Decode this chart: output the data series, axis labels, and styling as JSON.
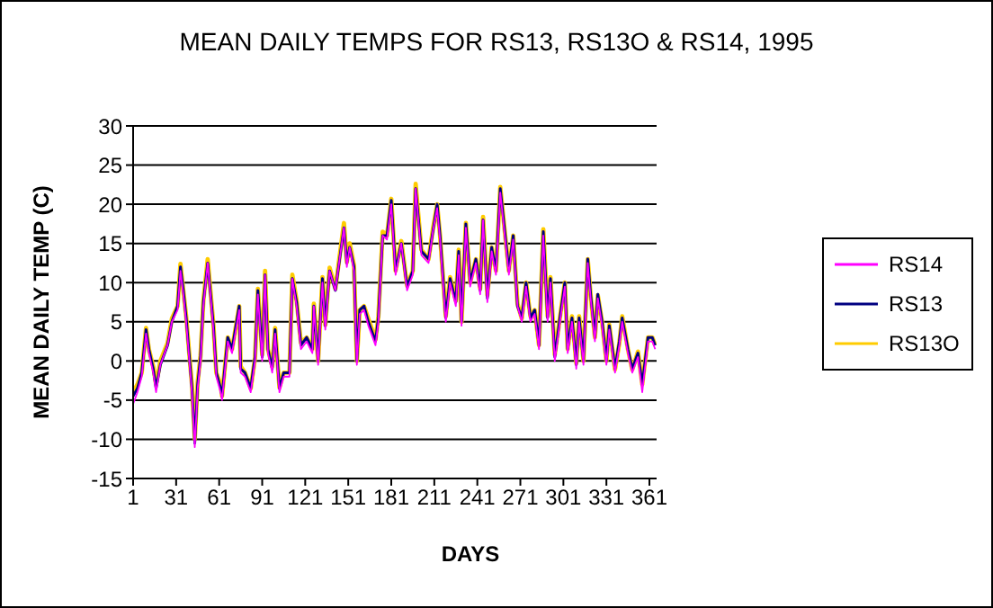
{
  "chart_data": {
    "type": "line",
    "title": "MEAN DAILY TEMPS FOR RS13, RS13O & RS14, 1995",
    "xlabel": "DAYS",
    "ylabel": "MEAN DAILY TEMP (C)",
    "x": [
      1,
      4,
      7,
      10,
      12,
      15,
      17,
      20,
      25,
      28,
      32,
      34,
      36,
      38,
      40,
      42,
      44,
      46,
      48,
      50,
      53,
      57,
      59,
      62,
      63,
      67,
      70,
      75,
      76,
      79,
      83,
      86,
      88,
      91,
      93,
      95,
      98,
      100,
      103,
      106,
      110,
      112,
      115,
      118,
      122,
      126,
      127,
      130,
      133,
      135,
      138,
      142,
      145,
      148,
      150,
      152,
      155,
      157,
      159,
      162,
      165,
      170,
      172,
      175,
      178,
      181,
      184,
      188,
      192,
      196,
      198,
      202,
      207,
      210,
      213,
      215,
      219,
      222,
      226,
      228,
      230,
      233,
      236,
      240,
      243,
      245,
      248,
      251,
      254,
      257,
      261,
      263,
      266,
      269,
      272,
      275,
      278,
      281,
      284,
      287,
      290,
      292,
      295,
      299,
      302,
      304,
      307,
      310,
      312,
      315,
      318,
      320,
      323,
      325,
      328,
      331,
      333,
      337,
      340,
      342,
      346,
      349,
      353,
      356,
      360,
      363,
      365
    ],
    "series": [
      {
        "name": "RS14",
        "color": "#ff00ff",
        "values": [
          -5.5,
          -4,
          -2,
          3.5,
          1,
          -1.5,
          -4,
          -0.5,
          2,
          5,
          6.5,
          11.5,
          8.5,
          5,
          0.5,
          -4,
          -11,
          -3.5,
          0,
          7,
          12.5,
          4,
          -2,
          -4,
          -5,
          2.5,
          1,
          6.5,
          -1.5,
          -2,
          -4,
          0,
          8.5,
          0,
          11,
          1,
          -1.5,
          3.5,
          -4,
          -2,
          -2,
          10.5,
          7,
          1.5,
          2.5,
          1,
          7,
          -0.5,
          10,
          4,
          11.5,
          9,
          13,
          17,
          12,
          14.5,
          11.5,
          -0.5,
          6,
          6.5,
          4.5,
          2,
          5,
          16,
          15.5,
          20,
          11,
          15,
          9,
          11,
          22,
          13.5,
          12.5,
          16.5,
          19.5,
          15.5,
          5,
          10,
          7,
          13.5,
          4.5,
          17,
          9.5,
          12.5,
          8.5,
          18,
          7.5,
          14,
          11,
          21.5,
          14.5,
          11,
          15.5,
          7,
          5,
          9.5,
          5,
          6,
          1.5,
          16,
          5,
          10,
          0,
          5.5,
          9.5,
          1,
          5,
          -1,
          5,
          -0.5,
          12.5,
          8,
          2.5,
          8,
          4.5,
          -0.5,
          4,
          -1.5,
          2,
          5,
          1,
          -1.5,
          0.5,
          -4,
          2.5,
          2.5,
          1.5
        ]
      },
      {
        "name": "RS13",
        "color": "#000080",
        "values": [
          -4.5,
          -3.5,
          -1.5,
          4,
          1.5,
          -1,
          -3.5,
          -0.5,
          2,
          5,
          7,
          12,
          9,
          5.5,
          1,
          -3.5,
          -10.5,
          -3,
          0.5,
          7.5,
          12.5,
          4.5,
          -1.5,
          -3.5,
          -4.5,
          3,
          1.5,
          7,
          -1,
          -1.5,
          -3.5,
          0.5,
          9,
          0.5,
          11,
          1.5,
          -1,
          4,
          -3.5,
          -1.5,
          -1.5,
          10.5,
          7.5,
          2,
          3,
          1.5,
          7,
          0,
          10.5,
          4.5,
          11.5,
          9,
          13,
          17,
          12.5,
          14.5,
          12,
          0,
          6.5,
          7,
          5,
          2.5,
          5.5,
          16,
          16,
          20.5,
          11.5,
          15,
          9.5,
          11.5,
          22,
          14,
          13,
          16.5,
          20,
          16,
          5.5,
          10.5,
          7.5,
          14,
          5,
          17.5,
          10,
          13,
          9,
          18,
          8,
          14.5,
          11.5,
          22,
          15,
          11.5,
          16,
          7,
          5.5,
          10,
          5.5,
          6.5,
          2,
          16.5,
          5.5,
          10.5,
          0.5,
          6,
          10,
          1.5,
          5.5,
          -0.5,
          5.5,
          0,
          13,
          8.5,
          3,
          8.5,
          5,
          0,
          4.5,
          -1,
          2.5,
          5.5,
          1.5,
          -1,
          1,
          -3,
          3,
          3,
          2
        ]
      },
      {
        "name": "RS13O",
        "color": "#ffcc00",
        "values": [
          -4,
          -3,
          -1.5,
          4.2,
          1.5,
          -0.7,
          -3,
          0,
          2.3,
          5.4,
          7,
          12.4,
          9,
          5.7,
          1.2,
          -3,
          -10,
          -2.7,
          0.7,
          7.7,
          13,
          4.6,
          -1.5,
          -3,
          -4.5,
          3,
          1.5,
          7,
          -0.7,
          -1.5,
          -3.5,
          0.4,
          9.2,
          0.8,
          11.5,
          1.5,
          -0.7,
          4.2,
          -3.4,
          -1.5,
          -1.5,
          11,
          7.7,
          2.3,
          3,
          1.5,
          7.3,
          0,
          10.7,
          4.6,
          11.9,
          9.2,
          13.4,
          17.6,
          12.6,
          15,
          12.2,
          0,
          6.5,
          7,
          5.4,
          2.7,
          5.7,
          16.5,
          16,
          20.7,
          11.5,
          15.3,
          9.6,
          11.5,
          22.6,
          14.2,
          13,
          16.8,
          20,
          16,
          5.7,
          10.7,
          7.7,
          14.2,
          5,
          17.6,
          10,
          13,
          9.2,
          18.4,
          8.4,
          14.5,
          11.5,
          22.2,
          15,
          11.5,
          16,
          7.3,
          5.4,
          10,
          5.7,
          6.5,
          2,
          16.8,
          5.7,
          10.7,
          0.8,
          6.1,
          10,
          1.5,
          5.7,
          -0.3,
          5.7,
          0,
          13,
          8.4,
          3,
          8.4,
          5,
          0,
          4.6,
          -1.1,
          2.3,
          5.7,
          1.5,
          -1.1,
          1.2,
          -3,
          3,
          3,
          2
        ]
      }
    ],
    "xlim": [
      1,
      366
    ],
    "xticks": [
      1,
      31,
      61,
      91,
      121,
      151,
      181,
      211,
      241,
      271,
      301,
      331,
      361
    ],
    "ylim": [
      -15,
      30
    ],
    "yticks": [
      -15,
      -10,
      -5,
      0,
      5,
      10,
      15,
      20,
      25,
      30
    ],
    "grid": "y",
    "legend": "right",
    "marker": "none",
    "line_style": "solid"
  }
}
